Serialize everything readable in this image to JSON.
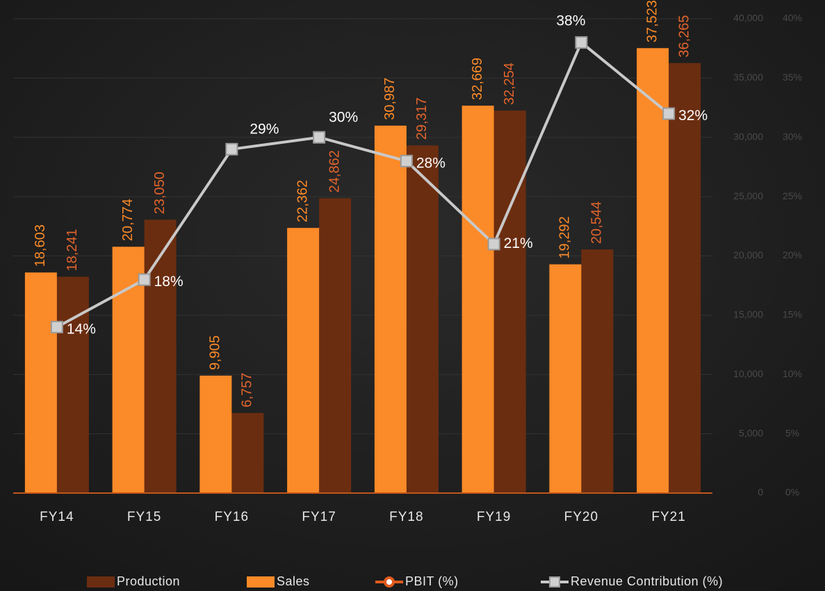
{
  "chart_data": {
    "type": "bar",
    "categories": [
      "FY14",
      "FY15",
      "FY16",
      "FY17",
      "FY18",
      "FY19",
      "FY20",
      "FY21"
    ],
    "series": [
      {
        "name": "Production",
        "type": "bar",
        "color": "#6b2d10",
        "label_color": "#e2642c",
        "values": [
          18241,
          23050,
          6757,
          24862,
          29317,
          32254,
          20544,
          36265
        ],
        "value_labels": [
          "18,241",
          "23,050",
          "6,757",
          "24,862",
          "29,317",
          "32,254",
          "20,544",
          "36,265"
        ]
      },
      {
        "name": "Sales",
        "type": "bar",
        "color": "#fb8a28",
        "label_color": "#fb8a28",
        "values": [
          18603,
          20774,
          9905,
          22362,
          30987,
          32669,
          19292,
          37523
        ],
        "value_labels": [
          "18,603",
          "20,774",
          "9,905",
          "22,362",
          "30,987",
          "32,669",
          "19,292",
          "37,523"
        ]
      },
      {
        "name": "PBIT (%)",
        "type": "line",
        "axis": "y2",
        "marker": "circle",
        "color": "#e05a1e",
        "values": [
          null,
          null,
          null,
          null,
          null,
          null,
          null,
          null
        ]
      },
      {
        "name": "Revenue Contribution (%)",
        "type": "line",
        "axis": "y2",
        "marker": "square",
        "color": "#c8c8c8",
        "values": [
          14,
          18,
          29,
          30,
          28,
          21,
          38,
          32
        ],
        "value_labels": [
          "14%",
          "18%",
          "29%",
          "30%",
          "28%",
          "21%",
          "38%",
          "32%"
        ]
      }
    ],
    "ylim": [
      0,
      40000
    ],
    "yticks": [
      0,
      {
        "value": 5000,
        "label": "5,000"
      },
      {
        "value": 10000,
        "label": "10,000"
      },
      {
        "value": 15000,
        "label": "15,000"
      },
      {
        "value": 20000,
        "label": "20,000"
      },
      {
        "value": 25000,
        "label": "25,000"
      },
      {
        "value": 30000,
        "label": "30,000"
      },
      {
        "value": 35000,
        "label": "35,000"
      },
      {
        "value": 40000,
        "label": "40,000"
      }
    ],
    "y2lim": [
      0,
      40
    ],
    "y2ticks": [
      {
        "value": 0,
        "label": "0%"
      },
      {
        "value": 5,
        "label": "5%"
      },
      {
        "value": 10,
        "label": "10%"
      },
      {
        "value": 15,
        "label": "15%"
      },
      {
        "value": 20,
        "label": "20%"
      },
      {
        "value": 25,
        "label": "25%"
      },
      {
        "value": 30,
        "label": "30%"
      },
      {
        "value": 35,
        "label": "35%"
      },
      {
        "value": 40,
        "label": "40%"
      }
    ],
    "grid": true,
    "legend": "bottom"
  }
}
